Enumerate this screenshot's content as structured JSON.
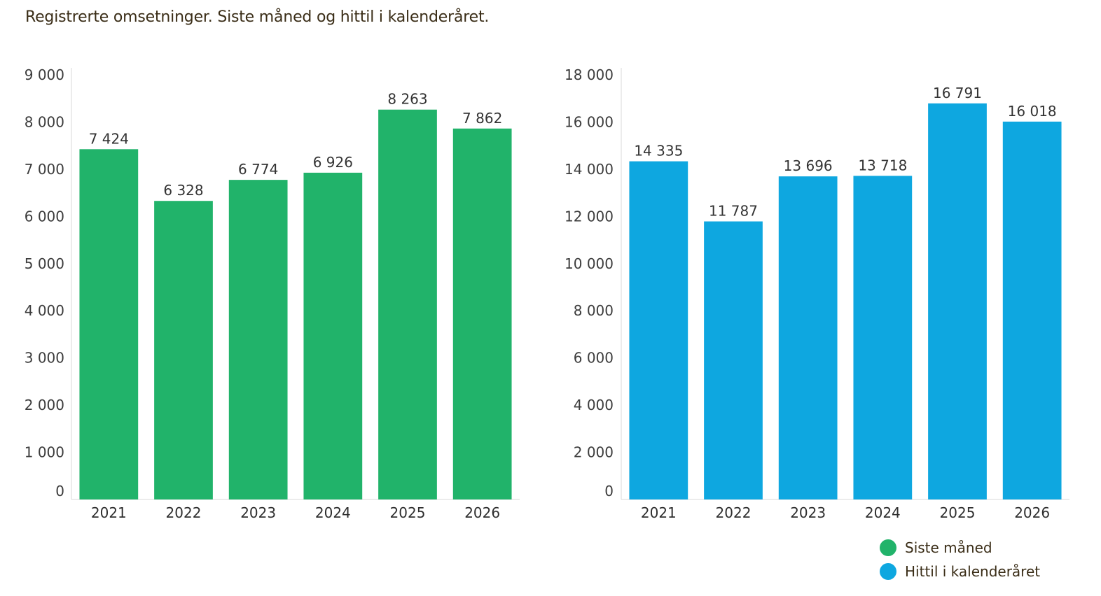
{
  "title": "Registrerte omsetninger. Siste måned og hittil i kalenderåret.",
  "colors": {
    "siste_maned": "#21b36a",
    "hittil": "#0ea7e0",
    "axis": "#d9d9d9"
  },
  "legend": [
    {
      "label": "Siste måned",
      "color": "#21b36a"
    },
    {
      "label": "Hittil i kalenderåret",
      "color": "#0ea7e0"
    }
  ],
  "chart_data": [
    {
      "type": "bar",
      "name": "Siste måned",
      "categories": [
        "2021",
        "2022",
        "2023",
        "2024",
        "2025",
        "2026"
      ],
      "values": [
        7424,
        6328,
        6774,
        6926,
        8263,
        7862
      ],
      "value_labels": [
        "7 424",
        "6 328",
        "6 774",
        "6 926",
        "8 263",
        "7 862"
      ],
      "yticks": [
        0,
        1000,
        2000,
        3000,
        4000,
        5000,
        6000,
        7000,
        8000,
        9000
      ],
      "ytick_labels": [
        "0",
        "1 000",
        "2 000",
        "3 000",
        "4 000",
        "5 000",
        "6 000",
        "7 000",
        "8 000",
        "9 000"
      ],
      "ylim": [
        0,
        9000
      ],
      "color": "#21b36a"
    },
    {
      "type": "bar",
      "name": "Hittil i kalenderåret",
      "categories": [
        "2021",
        "2022",
        "2023",
        "2024",
        "2025",
        "2026"
      ],
      "values": [
        14335,
        11787,
        13696,
        13718,
        16791,
        16018
      ],
      "value_labels": [
        "14 335",
        "11 787",
        "13 696",
        "13 718",
        "16 791",
        "16 018"
      ],
      "yticks": [
        0,
        2000,
        4000,
        6000,
        8000,
        10000,
        12000,
        14000,
        16000,
        18000
      ],
      "ytick_labels": [
        "0",
        "2 000",
        "4 000",
        "6 000",
        "8 000",
        "10 000",
        "12 000",
        "14 000",
        "16 000",
        "18 000"
      ],
      "ylim": [
        0,
        18000
      ],
      "color": "#0ea7e0"
    }
  ]
}
